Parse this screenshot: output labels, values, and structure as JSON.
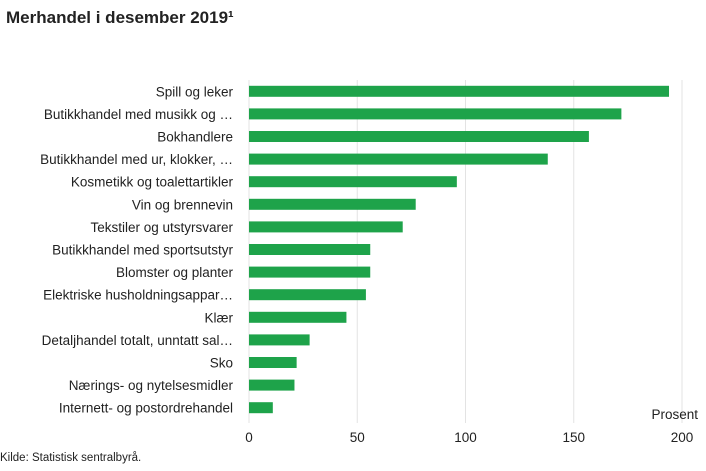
{
  "title": "Merhandel i desember 2019¹",
  "source": "Kilde: Statistisk sentralbyrå.",
  "chart_data": {
    "type": "bar",
    "orientation": "horizontal",
    "categories": [
      "Spill og leker",
      "Butikkhandel med musikk og …",
      "Bokhandlere",
      "Butikkhandel med ur, klokker, …",
      "Kosmetikk og toalettartikler",
      "Vin og brennevin",
      "Tekstiler og utstyrsvarer",
      "Butikkhandel med sportsutstyr",
      "Blomster og planter",
      "Elektriske husholdningsappar…",
      "Klær",
      "Detaljhandel totalt, unntatt sal…",
      "Sko",
      "Nærings- og nytelsesmidler",
      "Internett- og postordrehandel"
    ],
    "values": [
      194,
      172,
      157,
      138,
      96,
      77,
      71,
      56,
      56,
      54,
      45,
      28,
      22,
      21,
      11
    ],
    "xlabel": "Prosent",
    "ylabel": "",
    "xlim": [
      0,
      200
    ],
    "ticks": [
      0,
      50,
      100,
      150,
      200
    ],
    "bar_color": "#1ea34a",
    "grid_color": "#e3e3e3",
    "grid": true,
    "legend": "none"
  }
}
